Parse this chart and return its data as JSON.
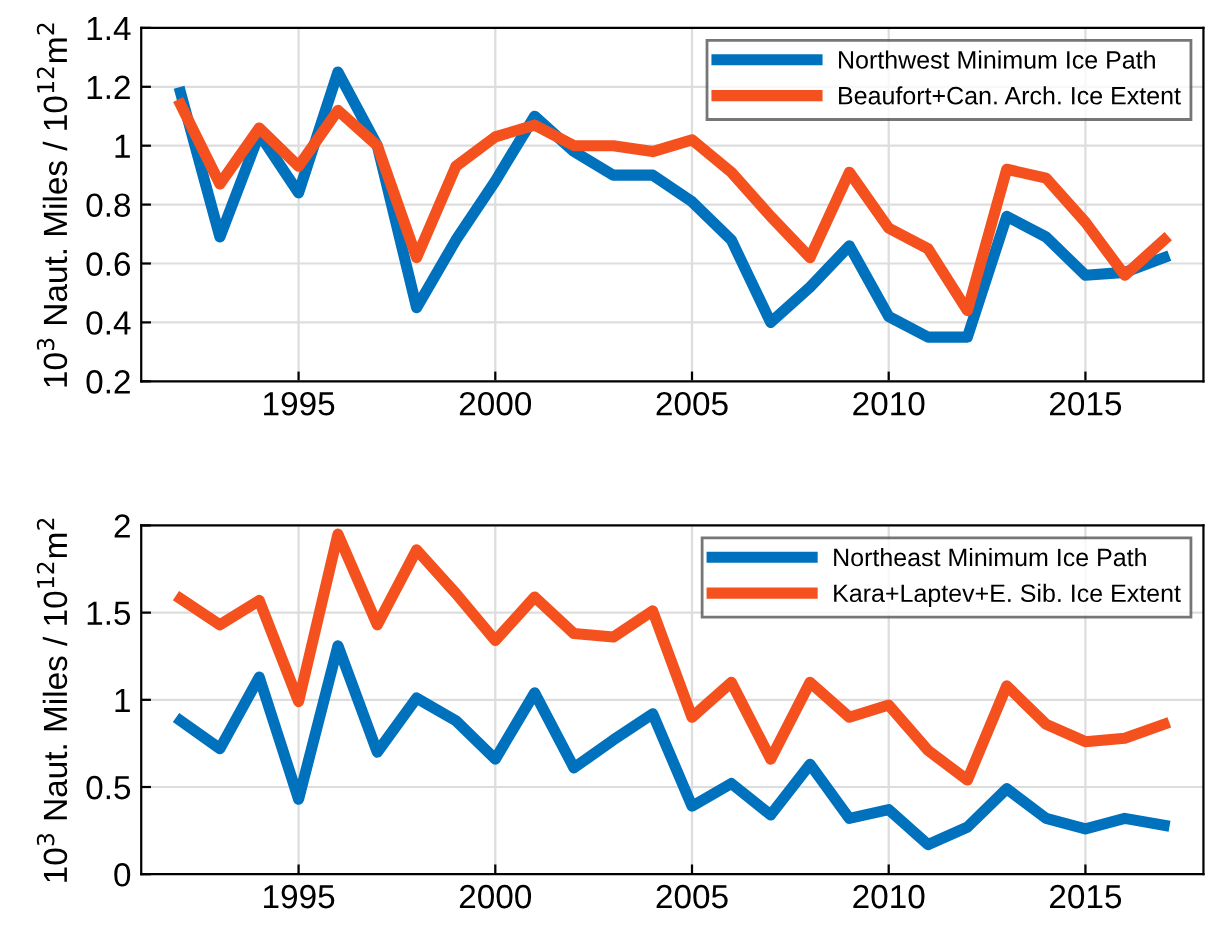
{
  "chart_data": [
    {
      "type": "line",
      "ylabel": "10$^{3}$ Naut. Miles / 10$^{12}$m$^{2}$",
      "x": [
        1992,
        1993,
        1994,
        1995,
        1996,
        1997,
        1998,
        1999,
        2000,
        2001,
        2002,
        2003,
        2004,
        2005,
        2006,
        2007,
        2008,
        2009,
        2010,
        2011,
        2012,
        2013,
        2014,
        2015,
        2016,
        2017
      ],
      "series": [
        {
          "name": "Northwest Minimum Ice Path",
          "color": "#0072bd",
          "values": [
            1.18,
            0.69,
            1.04,
            0.84,
            1.25,
            1.0,
            0.45,
            0.68,
            0.88,
            1.1,
            0.98,
            0.9,
            0.9,
            0.81,
            0.68,
            0.4,
            0.52,
            0.66,
            0.42,
            0.35,
            0.35,
            0.76,
            0.69,
            0.56,
            0.57,
            0.62
          ]
        },
        {
          "name": "Beaufort+Can. Arch. Ice Extent",
          "color": "#f4511e",
          "values": [
            1.14,
            0.87,
            1.06,
            0.93,
            1.12,
            1.0,
            0.62,
            0.93,
            1.03,
            1.07,
            1.0,
            1.0,
            0.98,
            1.02,
            0.91,
            0.76,
            0.62,
            0.91,
            0.72,
            0.65,
            0.44,
            0.92,
            0.89,
            0.74,
            0.56,
            0.68
          ]
        }
      ],
      "xlim": [
        1991,
        2018
      ],
      "xticks": [
        1995,
        2000,
        2005,
        2010,
        2015
      ],
      "ylim": [
        0.2,
        1.4
      ],
      "yticks": [
        0.2,
        0.4,
        0.6,
        0.8,
        1,
        1.2,
        1.4
      ],
      "grid": true,
      "legend": "top right",
      "line_style": "solid"
    },
    {
      "type": "line",
      "ylabel": "10$^{3}$ Naut. Miles / 10$^{12}$m$^{2}$",
      "x": [
        1992,
        1993,
        1994,
        1995,
        1996,
        1997,
        1998,
        1999,
        2000,
        2001,
        2002,
        2003,
        2004,
        2005,
        2006,
        2007,
        2008,
        2009,
        2010,
        2011,
        2012,
        2013,
        2014,
        2015,
        2016,
        2017
      ],
      "series": [
        {
          "name": "Northeast Minimum Ice Path",
          "color": "#0072bd",
          "values": [
            0.88,
            0.72,
            1.13,
            0.43,
            1.31,
            0.7,
            1.01,
            0.88,
            0.66,
            1.04,
            0.61,
            0.77,
            0.92,
            0.39,
            0.52,
            0.34,
            0.63,
            0.32,
            0.37,
            0.17,
            0.27,
            0.49,
            0.32,
            0.26,
            0.32,
            0.28
          ]
        },
        {
          "name": "Kara+Laptev+E. Sib. Ice Extent",
          "color": "#f4511e",
          "values": [
            1.58,
            1.43,
            1.57,
            0.99,
            1.95,
            1.43,
            1.86,
            1.61,
            1.34,
            1.59,
            1.38,
            1.36,
            1.51,
            0.9,
            1.1,
            0.66,
            1.1,
            0.9,
            0.97,
            0.71,
            0.54,
            1.08,
            0.86,
            0.76,
            0.78,
            0.86
          ]
        }
      ],
      "xlim": [
        1991,
        2018
      ],
      "xticks": [
        1995,
        2000,
        2005,
        2010,
        2015
      ],
      "ylim": [
        0,
        2
      ],
      "yticks": [
        0,
        0.5,
        1,
        1.5,
        2
      ],
      "grid": true,
      "legend": "top right",
      "line_style": "solid"
    }
  ]
}
